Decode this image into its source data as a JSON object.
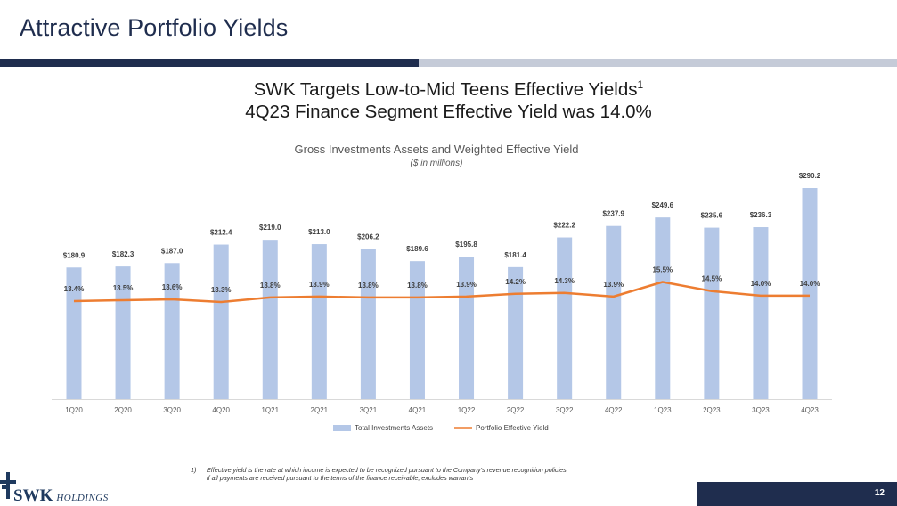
{
  "slide": {
    "title": "Attractive Portfolio Yields",
    "headline_line1": "SWK Targets Low-to-Mid Teens Effective Yields",
    "headline_line1_sup": "1",
    "headline_line2": "4Q23 Finance Segment Effective Yield was 14.0%",
    "page_number": "12"
  },
  "colors": {
    "title_bar_dark": "#1f2d4e",
    "title_bar_light": "#c5cbd8",
    "bar": "#b4c7e7",
    "line": "#ed7d31"
  },
  "chart_data": {
    "type": "bar",
    "title": "Gross Investments Assets and Weighted Effective Yield",
    "subtitle": "($ in millions)",
    "categories": [
      "1Q20",
      "2Q20",
      "3Q20",
      "4Q20",
      "1Q21",
      "2Q21",
      "3Q21",
      "4Q21",
      "1Q22",
      "2Q22",
      "3Q22",
      "4Q22",
      "1Q23",
      "2Q23",
      "3Q23",
      "4Q23"
    ],
    "series": [
      {
        "name": "Total Investments Assets",
        "type": "bar",
        "values": [
          180.9,
          182.3,
          187.0,
          212.4,
          219.0,
          213.0,
          206.2,
          189.6,
          195.8,
          181.4,
          222.2,
          237.9,
          249.6,
          235.6,
          236.3,
          290.2
        ],
        "labels": [
          "$180.9",
          "$182.3",
          "$187.0",
          "$212.4",
          "$219.0",
          "$213.0",
          "$206.2",
          "$189.6",
          "$195.8",
          "$181.4",
          "$222.2",
          "$237.9",
          "$249.6",
          "$235.6",
          "$236.3",
          "$290.2"
        ]
      },
      {
        "name": "Portfolio Effective Yield",
        "type": "line",
        "values": [
          13.4,
          13.5,
          13.6,
          13.3,
          13.8,
          13.9,
          13.8,
          13.8,
          13.9,
          14.2,
          14.3,
          13.9,
          15.5,
          14.5,
          14.0,
          14.0
        ],
        "labels": [
          "13.4%",
          "13.5%",
          "13.6%",
          "13.3%",
          "13.8%",
          "13.9%",
          "13.8%",
          "13.8%",
          "13.9%",
          "14.2%",
          "14.3%",
          "13.9%",
          "15.5%",
          "14.5%",
          "14.0%",
          "14.0%"
        ]
      }
    ],
    "bar_ylim": [
      0,
      290.2
    ],
    "line_ylim": [
      0,
      100
    ],
    "legend": "bottom-center",
    "grid": false
  },
  "footnote": {
    "number": "1)",
    "line1": "Effective yield is the rate at which income is expected to be recognized pursuant to the Company's revenue recognition policies,",
    "line2": "if all payments are received pursuant to the terms of the finance receivable; excludes warrants"
  },
  "logo": {
    "name_bold": "SWK",
    "name_italic": "HOLDINGS"
  }
}
